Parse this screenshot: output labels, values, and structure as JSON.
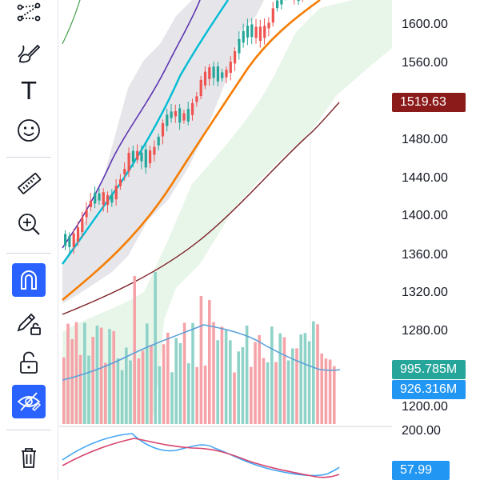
{
  "toolbar": {
    "tools": [
      {
        "name": "pattern-tool-icon",
        "active": false
      },
      {
        "name": "brush-tool-icon",
        "active": false
      },
      {
        "name": "text-tool-icon",
        "active": false
      },
      {
        "name": "emoji-tool-icon",
        "active": false
      },
      {
        "name": "ruler-tool-icon",
        "active": false
      },
      {
        "name": "zoom-in-tool-icon",
        "active": false
      },
      {
        "name": "magnet-tool-icon",
        "active": true
      },
      {
        "name": "lock-drawing-tool-icon",
        "active": false
      },
      {
        "name": "unlock-tool-icon",
        "active": false
      },
      {
        "name": "hide-drawings-tool-icon",
        "active": true
      },
      {
        "name": "trash-tool-icon",
        "active": false
      }
    ],
    "text_tool_glyph": "T",
    "accent": "#2962ff"
  },
  "price_axis": {
    "labels": [
      "1600.00",
      "1560.00",
      "1480.00",
      "1440.00",
      "1400.00",
      "1360.00",
      "1320.00",
      "1280.00",
      "1200.00"
    ],
    "last_price": "1519.63",
    "last_price_color": "#8b1a1a"
  },
  "volume": {
    "value_label": "995.785M",
    "value_color": "#26a69a",
    "ma_label": "926.316M",
    "ma_color": "#2196f3"
  },
  "oscillator": {
    "top_label": "200.00",
    "value_label": "57.99",
    "value_color": "#2196f3"
  },
  "colors": {
    "up": "#26a69a",
    "down": "#ef5350",
    "ma_blue": "#00bcd4",
    "ma_orange": "#f57c00",
    "ma_maroon": "#7b1f24",
    "ma_purple": "#5e35b1",
    "ma_green": "#43a047",
    "cloud": "#e8f5e9",
    "band": "#e6e6ea"
  }
}
